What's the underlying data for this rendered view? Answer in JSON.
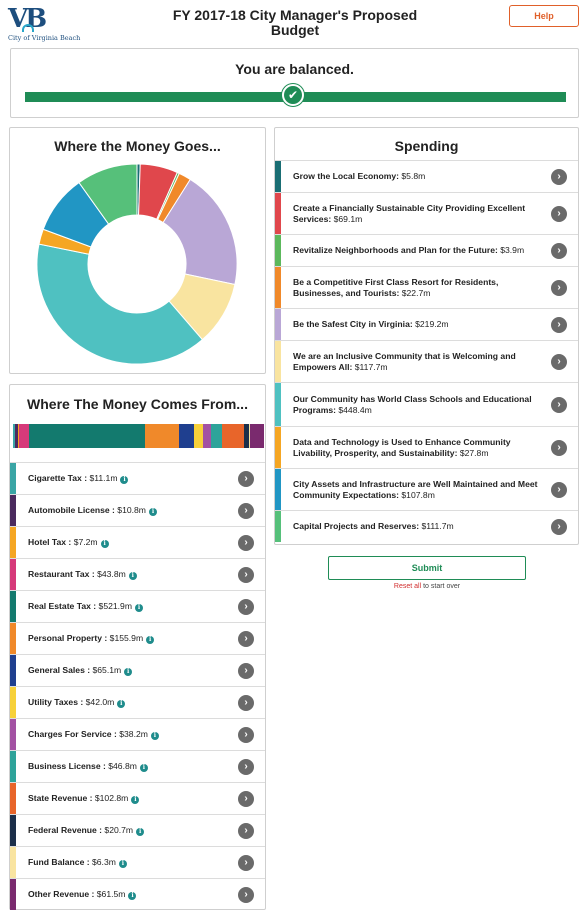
{
  "header": {
    "logo_text": "City of Virginia Beach",
    "logo_mark": "VB",
    "title": "FY 2017-18 City Manager's Proposed Budget",
    "help_label": "Help"
  },
  "balance": {
    "status_text": "You are balanced.",
    "check_icon": "checkmark-icon"
  },
  "donut": {
    "title": "Where the Money Goes...",
    "slices": [
      {
        "label": "Grow the Local Economy",
        "value": 5.8,
        "color": "#1a6e74"
      },
      {
        "label": "Create a Financially Sustainable City Providing Excellent Services",
        "value": 69.1,
        "color": "#e0474c"
      },
      {
        "label": "Revitalize Neighborhoods and Plan for the Future",
        "value": 3.9,
        "color": "#5cb85c"
      },
      {
        "label": "Be a Competitive First Class Resort for Residents, Businesses, and Tourists",
        "value": 22.7,
        "color": "#f0892a"
      },
      {
        "label": "Be the Safest City in Virginia",
        "value": 219.2,
        "color": "#b9a7d6"
      },
      {
        "label": "We are an Inclusive Community that is Welcoming and Empowers All",
        "value": 117.7,
        "color": "#f9e4a0"
      },
      {
        "label": "Our Community has World Class Schools and Educational Programs",
        "value": 448.4,
        "color": "#4fc1c1"
      },
      {
        "label": "Data and Technology is Used to Enhance Community Livability, Prosperity, and Sustainability",
        "value": 27.8,
        "color": "#f5a623"
      },
      {
        "label": "City Assets and Infrastructure are Well Maintained and Meet Community Expectations",
        "value": 107.8,
        "color": "#2196c4"
      },
      {
        "label": "Capital Projects and Reserves",
        "value": 111.7,
        "color": "#56c07a"
      }
    ]
  },
  "spending": {
    "title": "Spending",
    "items": [
      {
        "label": "Grow the Local Economy:",
        "amount": "$5.8m",
        "color": "#1a6e74"
      },
      {
        "label": "Create a Financially Sustainable City Providing Excellent Services:",
        "amount": "$69.1m",
        "color": "#e0474c"
      },
      {
        "label": "Revitalize Neighborhoods and Plan for the Future:",
        "amount": "$3.9m",
        "color": "#5cb85c"
      },
      {
        "label": "Be a Competitive First Class Resort for Residents, Businesses, and Tourists:",
        "amount": "$22.7m",
        "color": "#f0892a"
      },
      {
        "label": "Be the Safest City in Virginia:",
        "amount": "$219.2m",
        "color": "#b9a7d6"
      },
      {
        "label": "We are an Inclusive Community that is Welcoming and Empowers All:",
        "amount": "$117.7m",
        "color": "#f9e4a0"
      },
      {
        "label": "Our Community has World Class Schools and Educational Programs:",
        "amount": "$448.4m",
        "color": "#4fc1c1"
      },
      {
        "label": "Data and Technology is Used to Enhance Community Livability, Prosperity, and Sustainability:",
        "amount": "$27.8m",
        "color": "#f5a623"
      },
      {
        "label": "City Assets and Infrastructure are Well Maintained and Meet Community Expectations:",
        "amount": "$107.8m",
        "color": "#2196c4"
      },
      {
        "label": "Capital Projects and Reserves:",
        "amount": "$111.7m",
        "color": "#56c07a"
      }
    ]
  },
  "income": {
    "title": "Where The Money Comes From...",
    "items": [
      {
        "label": "Cigarette Tax :",
        "amount": "$11.1m",
        "value": 11.1,
        "color": "#3aa5a5"
      },
      {
        "label": "Automobile License :",
        "amount": "$10.8m",
        "value": 10.8,
        "color": "#4b2a5e"
      },
      {
        "label": "Hotel Tax :",
        "amount": "$7.2m",
        "value": 7.2,
        "color": "#f5a623"
      },
      {
        "label": "Restaurant Tax :",
        "amount": "$43.8m",
        "value": 43.8,
        "color": "#d63a7a"
      },
      {
        "label": "Real Estate Tax :",
        "amount": "$521.9m",
        "value": 521.9,
        "color": "#137a6e"
      },
      {
        "label": "Personal Property :",
        "amount": "$155.9m",
        "value": 155.9,
        "color": "#f0892a"
      },
      {
        "label": "General Sales :",
        "amount": "$65.1m",
        "value": 65.1,
        "color": "#1f3f8f"
      },
      {
        "label": "Utility Taxes :",
        "amount": "$42.0m",
        "value": 42.0,
        "color": "#f7d13a"
      },
      {
        "label": "Charges For Service :",
        "amount": "$38.2m",
        "value": 38.2,
        "color": "#a352a3"
      },
      {
        "label": "Business License :",
        "amount": "$46.8m",
        "value": 46.8,
        "color": "#2ea39a"
      },
      {
        "label": "State Revenue :",
        "amount": "$102.8m",
        "value": 102.8,
        "color": "#e8652a"
      },
      {
        "label": "Federal Revenue :",
        "amount": "$20.7m",
        "value": 20.7,
        "color": "#1c2f4a"
      },
      {
        "label": "Fund Balance :",
        "amount": "$6.3m",
        "value": 6.3,
        "color": "#f9e4a0"
      },
      {
        "label": "Other Revenue :",
        "amount": "$61.5m",
        "value": 61.5,
        "color": "#7a2a6e"
      }
    ]
  },
  "actions": {
    "submit_label": "Submit",
    "reset_link": "Reset all",
    "reset_rest": " to start over"
  },
  "icons": {
    "row_arrow": "chevron-right-icon",
    "info": "info-icon"
  }
}
